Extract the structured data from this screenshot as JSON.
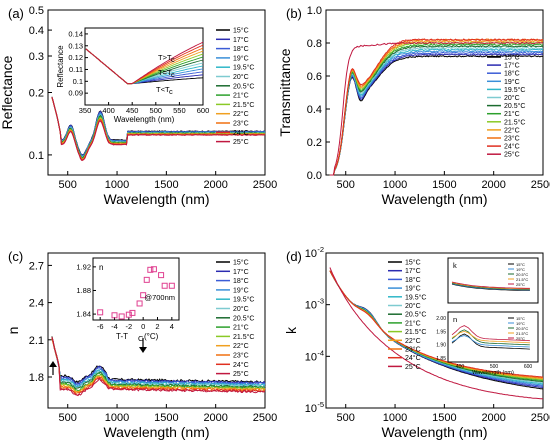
{
  "series_colors": [
    "#000000",
    "#2b2bb0",
    "#3b5cd6",
    "#3a8fd8",
    "#2fb7c8",
    "#7ecbd0",
    "#1b6b2f",
    "#2ca02c",
    "#8ac926",
    "#f0a020",
    "#f07010",
    "#e03020",
    "#c01840",
    "#a0103a",
    "#7a0030"
  ],
  "charts": [
    {
      "type": "line",
      "panel_label": "(a)",
      "xlabel": "Wavelength (nm)",
      "ylabel": "Reflectance",
      "xlim": [
        300,
        2500
      ],
      "ylim": [
        0.08,
        0.5
      ],
      "yscale": "log",
      "xticks": [
        "500",
        "1000",
        "1500",
        "2000",
        "2500"
      ],
      "yticks": [
        {
          "v": 0.1,
          "label": "0.1"
        },
        {
          "v": 0.2,
          "label": "0.2"
        },
        {
          "v": 0.3,
          "label": "0.3"
        },
        {
          "v": 0.4,
          "label": "0.4"
        },
        {
          "v": 0.5,
          "label": "0.5"
        }
      ],
      "legend_position": "right",
      "legend": [
        "15°C",
        "17°C",
        "18°C",
        "19°C",
        "19.5°C",
        "20°C",
        "20.5°C",
        "21°C",
        "21.5°C",
        "22°C",
        "23°C",
        "24°C",
        "25°C"
      ],
      "inset": {
        "xlabel": "Wavelength (nm)",
        "ylabel": "Reflectance",
        "xlim": [
          350,
          600
        ],
        "ylim": [
          0.08,
          0.145
        ],
        "xticks": [
          "350",
          "400",
          "450",
          "500",
          "550",
          "600"
        ],
        "yticks": [
          {
            "v": 0.09,
            "label": "0.09"
          },
          {
            "v": 0.1,
            "label": "0.1"
          },
          {
            "v": 0.11,
            "label": "0.11"
          },
          {
            "v": 0.12,
            "label": "0.12"
          },
          {
            "v": 0.13,
            "label": "0.13"
          },
          {
            "v": 0.14,
            "label": "0.14"
          }
        ],
        "annotations": [
          "T>T",
          "T=T",
          "T<T"
        ],
        "annotation_sub": "c"
      }
    },
    {
      "type": "line",
      "panel_label": "(b)",
      "xlabel": "Wavelength (nm)",
      "ylabel": "Transmittance",
      "xlim": [
        300,
        2500
      ],
      "ylim": [
        0,
        1.0
      ],
      "yscale": "linear",
      "xticks": [
        "500",
        "1000",
        "1500",
        "2000",
        "2500"
      ],
      "yticks": [
        {
          "v": 0.0,
          "label": "0.0"
        },
        {
          "v": 0.2,
          "label": "0.2"
        },
        {
          "v": 0.4,
          "label": "0.4"
        },
        {
          "v": 0.6,
          "label": "0.6"
        },
        {
          "v": 0.8,
          "label": "0.8"
        },
        {
          "v": 1.0,
          "label": "1.0"
        }
      ],
      "legend_position": "right",
      "legend": [
        "15°C",
        "17°C",
        "18°C",
        "19°C",
        "19.5°C",
        "20°C",
        "20.5°C",
        "21°C",
        "21.5°C",
        "22°C",
        "23°C",
        "24°C",
        "25°C"
      ]
    },
    {
      "type": "line",
      "panel_label": "(c)",
      "xlabel": "Wavelength (nm)",
      "ylabel": "n",
      "xlim": [
        300,
        2500
      ],
      "ylim": [
        1.55,
        2.8
      ],
      "yscale": "linear",
      "xticks": [
        "500",
        "1000",
        "1500",
        "2000",
        "2500"
      ],
      "yticks": [
        {
          "v": 1.8,
          "label": "1.8"
        },
        {
          "v": 2.1,
          "label": "2.1"
        },
        {
          "v": 2.4,
          "label": "2.4"
        },
        {
          "v": 2.7,
          "label": "2.7"
        }
      ],
      "legend_position": "right",
      "legend": [
        "15°C",
        "17°C",
        "18°C",
        "19°C",
        "19.5°C",
        "20°C",
        "20.5°C",
        "21°C",
        "21.5°C",
        "22°C",
        "23°C",
        "24°C",
        "25°C"
      ],
      "inset": {
        "type": "scatter",
        "label": "n",
        "annotation": "@700nm",
        "xlabel": "T-T",
        "xlabel_sub": "C",
        "xlabel_unit": " (°C)",
        "xlim": [
          -7,
          5
        ],
        "ylim": [
          1.83,
          1.935
        ],
        "xticks": [
          {
            "v": -6,
            "label": "-6"
          },
          {
            "v": -4,
            "label": "-4"
          },
          {
            "v": -2,
            "label": "-2"
          },
          {
            "v": 0,
            "label": "0"
          },
          {
            "v": 2,
            "label": "2"
          },
          {
            "v": 4,
            "label": "4"
          }
        ],
        "yticks": [
          {
            "v": 1.84,
            "label": "1.84"
          },
          {
            "v": 1.88,
            "label": "1.88"
          },
          {
            "v": 1.92,
            "label": "1.92"
          }
        ],
        "points": [
          [
            -6,
            1.843
          ],
          [
            -4,
            1.838
          ],
          [
            -3,
            1.836
          ],
          [
            -2,
            1.839
          ],
          [
            -1.5,
            1.842
          ],
          [
            -0.5,
            1.858
          ],
          [
            0,
            1.872
          ],
          [
            0.5,
            1.898
          ],
          [
            1,
            1.915
          ],
          [
            1.5,
            1.916
          ],
          [
            2.5,
            1.906
          ],
          [
            3,
            1.888
          ],
          [
            4,
            1.888
          ]
        ]
      }
    },
    {
      "type": "line",
      "panel_label": "(d)",
      "xlabel": "Wavelength (nm)",
      "ylabel": "k",
      "xlim": [
        300,
        2500
      ],
      "ylim": [
        1e-05,
        0.01
      ],
      "yscale": "log",
      "xticks": [
        "500",
        "1000",
        "1500",
        "2000",
        "2500"
      ],
      "yticks": [
        {
          "v": 1e-05,
          "base": "10",
          "exp": "-5"
        },
        {
          "v": 0.0001,
          "base": "10",
          "exp": "-4"
        },
        {
          "v": 0.001,
          "base": "10",
          "exp": "-3"
        },
        {
          "v": 0.01,
          "base": "10",
          "exp": "-2"
        }
      ],
      "legend_position": "center",
      "legend": [
        "15°C",
        "17°C",
        "18°C",
        "19°C",
        "19.5°C",
        "20°C",
        "20.5°C",
        "21°C",
        "21.5°C",
        "22°C",
        "23°C",
        "24°C",
        "25°C"
      ],
      "insets": [
        {
          "label": "k",
          "legend": [
            "15°C",
            "19°C",
            "20.5°C",
            "21.5°C",
            "25°C"
          ]
        },
        {
          "label": "n",
          "xlabel": "Wavelength (nm)",
          "xticks": [
            "400",
            "500",
            "600"
          ],
          "yticks": [
            {
              "v": 1.85,
              "label": "1.85"
            },
            {
              "v": 1.9,
              "label": "1.90"
            },
            {
              "v": 1.95,
              "label": "1.95"
            },
            {
              "v": 2.0,
              "label": "2.00"
            }
          ],
          "legend": [
            "15°C",
            "19°C",
            "20.5°C",
            "21.5°C",
            "25°C"
          ]
        }
      ]
    }
  ]
}
